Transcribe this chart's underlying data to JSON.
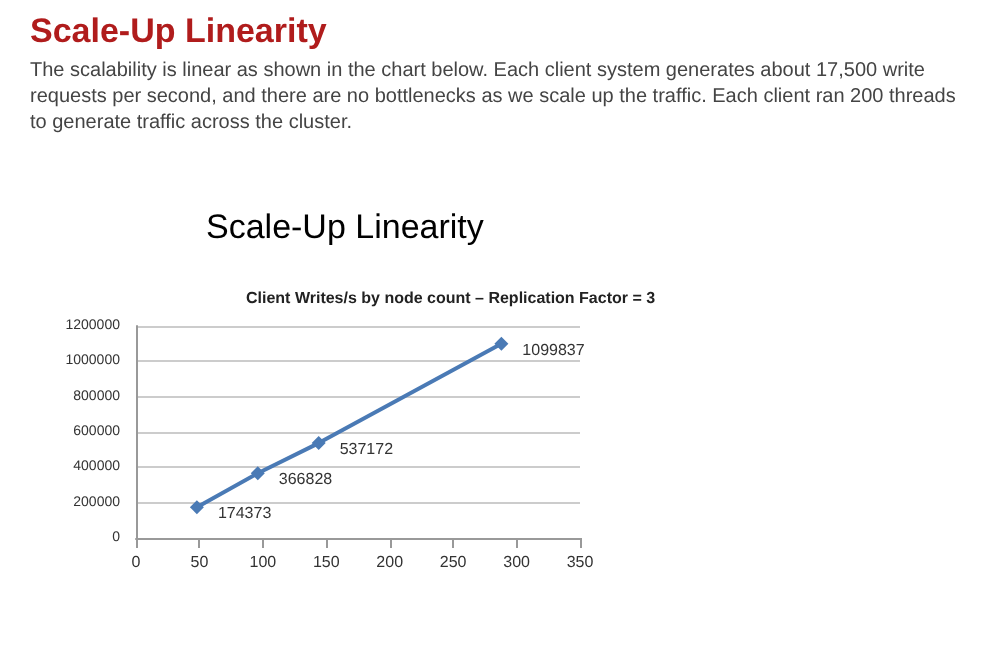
{
  "chart_data": {
    "type": "line",
    "title": "Scale-Up Linearity",
    "subtitle": "The scalability is linear as shown in the chart below. Each client system generates about 17,500 write requests per second, and there are no bottlenecks as we scale up the traffic. Each client ran 200 threads to generate traffic across the cluster.",
    "annotations": [
      "Scale-Up Linearity",
      "Client Writes/s by node count – Replication Factor = 3"
    ],
    "x": [
      48,
      96,
      144,
      288
    ],
    "series": [
      {
        "color": "#4a7ab5",
        "values": [
          174373,
          366828,
          537172,
          1099837
        ]
      }
    ],
    "xlim": [
      0,
      350
    ],
    "xticks": [
      0,
      50,
      100,
      150,
      200,
      250,
      300,
      350
    ],
    "ylim": [
      0,
      1200000
    ],
    "yticks": [
      0,
      200000,
      400000,
      600000,
      800000,
      1000000,
      1200000
    ],
    "grid": "y",
    "marker": "diamond",
    "line_style": "solid",
    "data_labels": true
  }
}
